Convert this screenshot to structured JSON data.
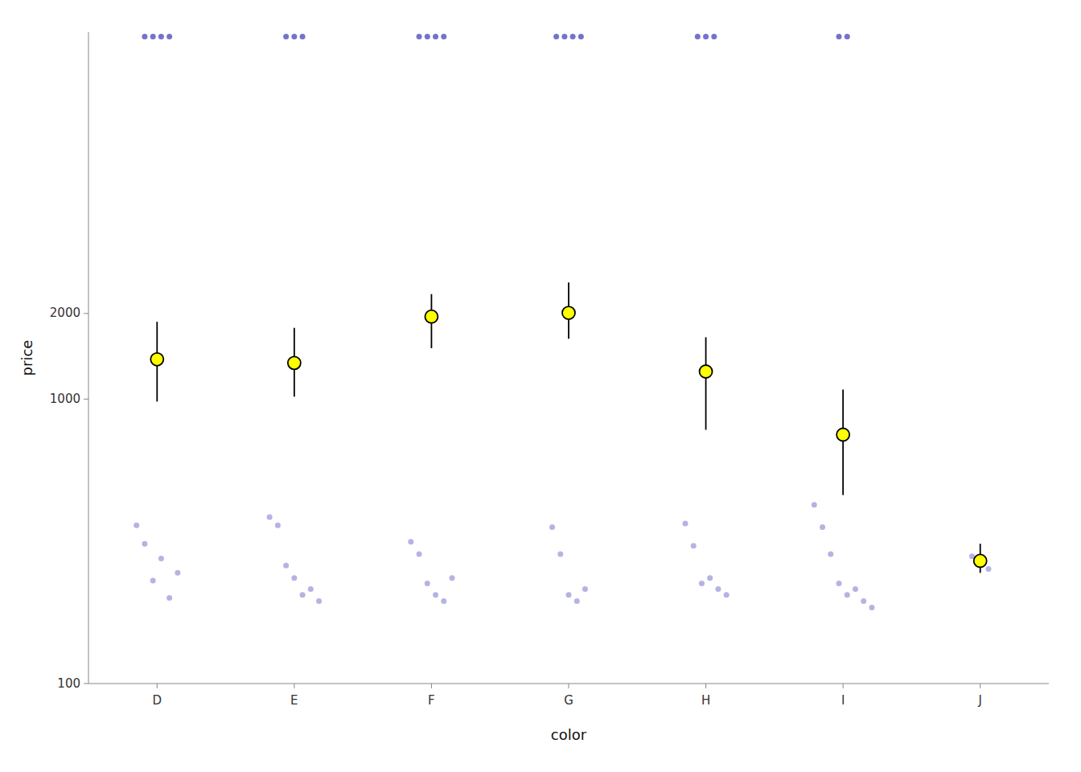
{
  "chart_data": {
    "type": "dot_plot",
    "categories": [
      "D",
      "E",
      "F",
      "G",
      "H",
      "I",
      "J"
    ],
    "xlabel": "color",
    "ylabel": "price",
    "log": "y",
    "ylim": [
      100,
      19500
    ],
    "yticks": [
      100,
      1000,
      2000
    ],
    "series": [
      {
        "type": "strip",
        "color": "#7777cc",
        "values": [
          [
            360,
            310,
            230,
            275,
            200,
            245
          ],
          [
            385,
            360,
            260,
            235,
            205,
            215,
            195
          ],
          [
            315,
            285,
            225,
            205,
            195,
            235
          ],
          [
            355,
            285,
            205,
            195,
            215
          ],
          [
            365,
            305,
            225,
            235,
            215,
            205
          ],
          [
            425,
            355,
            285,
            225,
            205,
            215,
            195,
            185
          ],
          [
            280,
            262,
            253
          ]
        ]
      },
      {
        "type": "strip",
        "color": "#4444bb",
        "values": [
          [
            18800,
            18800,
            18800,
            18800
          ],
          [
            18800,
            18800,
            18800
          ],
          [
            18800,
            18800,
            18800,
            18800
          ],
          [
            18800,
            18800,
            18800,
            18800
          ],
          [
            18800,
            18800,
            18800
          ],
          [
            18800,
            18800
          ],
          []
        ]
      },
      {
        "type": "mean",
        "color": "#ffff00",
        "values": [
          1380,
          1340,
          1950,
          2010,
          1250,
          750,
          270
        ],
        "ci_lower": [
          980,
          1020,
          1510,
          1630,
          780,
          460,
          245
        ],
        "ci_upper": [
          1870,
          1780,
          2340,
          2570,
          1650,
          1080,
          310
        ]
      }
    ]
  }
}
